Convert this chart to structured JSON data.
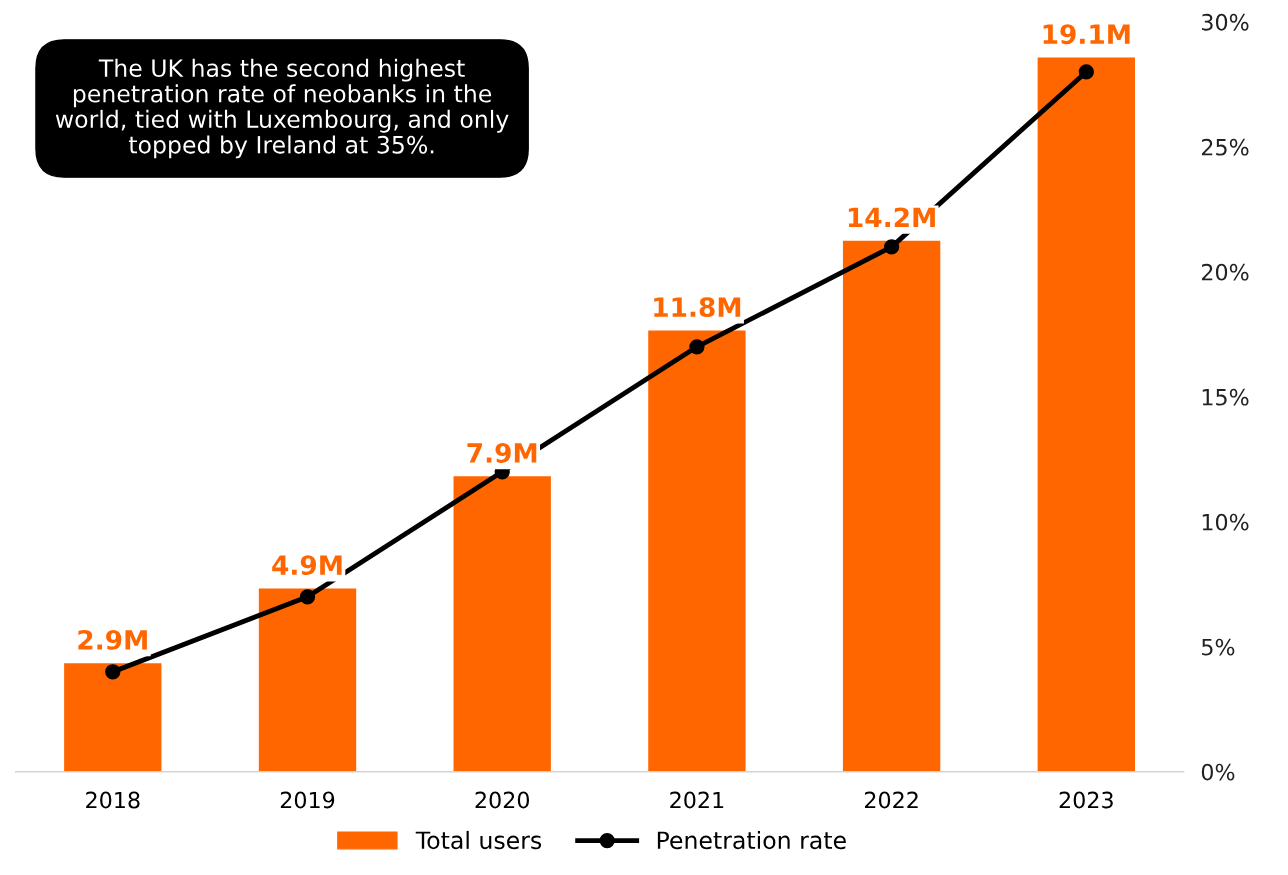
{
  "chart_data": {
    "type": "bar",
    "categories": [
      "2018",
      "2019",
      "2020",
      "2021",
      "2022",
      "2023"
    ],
    "series": [
      {
        "name": "Total users",
        "color": "#ff6600",
        "values": [
          2.9,
          4.9,
          7.9,
          11.8,
          14.2,
          19.1
        ],
        "value_labels": [
          "2.9M",
          "4.9M",
          "7.9M",
          "11.8M",
          "14.2M",
          "19.1M"
        ]
      },
      {
        "name": "Penetration rate",
        "type": "line",
        "axis": "y2",
        "color": "#000000",
        "marker": "circle",
        "values": [
          4,
          7,
          12,
          17,
          21,
          28
        ]
      }
    ],
    "y2lim": [
      0,
      30
    ],
    "y2ticks": [
      {
        "value": 0,
        "label": "0%"
      },
      {
        "value": 5,
        "label": "5%"
      },
      {
        "value": 10,
        "label": "10%"
      },
      {
        "value": 15,
        "label": "15%"
      },
      {
        "value": 20,
        "label": "20%"
      },
      {
        "value": 25,
        "label": "25%"
      },
      {
        "value": 30,
        "label": "30%"
      }
    ],
    "annotations": [
      "The UK has the second highest penetration rate of neobanks in the world, tied with Luxembourg, and only topped by Ireland at 35%."
    ],
    "legend": "bottom",
    "grid": false
  }
}
